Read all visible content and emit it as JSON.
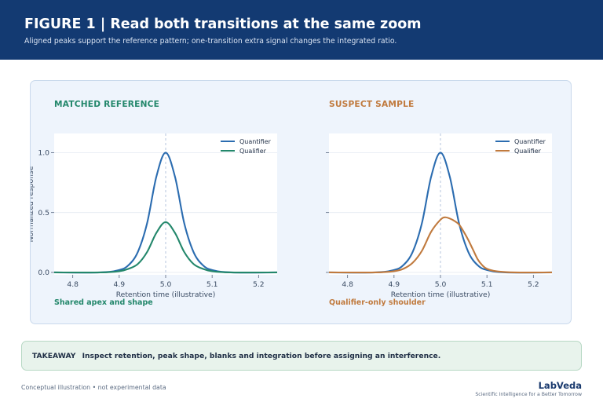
{
  "header": {
    "title": "FIGURE 1  |  Read both transitions at the same zoom",
    "subtitle": "Aligned peaks support the reference pattern; one-transition extra signal changes the integrated ratio."
  },
  "colors": {
    "quantifier": "#2b6cb0",
    "reference_qualifier": "#23876b",
    "suspect_qualifier": "#c07a3e",
    "header_bg": "#133a72",
    "apex_line": "#aebfd9"
  },
  "chart_data": [
    {
      "type": "line",
      "title": "MATCHED REFERENCE",
      "caption": "Shared apex and shape",
      "xlabel": "Retention time (illustrative)",
      "ylabel": "Normalized response",
      "xlim": [
        4.76,
        5.24
      ],
      "ylim": [
        -0.02,
        1.16
      ],
      "xticks": [
        "4.8",
        "4.9",
        "5.0",
        "5.1",
        "5.2"
      ],
      "xtick_values": [
        4.8,
        4.9,
        5.0,
        5.1,
        5.2
      ],
      "yticks": [
        "0.0",
        "0.5",
        "1.0"
      ],
      "ytick_values": [
        0.0,
        0.5,
        1.0
      ],
      "apex_marker_x": 5.0,
      "grid": "horizontal",
      "legend_position": "top-right",
      "series": [
        {
          "name": "Quantifier",
          "color": "#2b6cb0",
          "x": [
            4.76,
            4.86,
            4.9,
            4.92,
            4.94,
            4.96,
            4.98,
            5.0,
            5.02,
            5.04,
            5.06,
            5.08,
            5.1,
            5.14,
            5.24
          ],
          "y": [
            0.0,
            0.0,
            0.02,
            0.06,
            0.17,
            0.41,
            0.8,
            1.0,
            0.8,
            0.41,
            0.17,
            0.06,
            0.02,
            0.0,
            0.0
          ]
        },
        {
          "name": "Qualifier",
          "color": "#23876b",
          "x": [
            4.76,
            4.86,
            4.9,
            4.92,
            4.94,
            4.96,
            4.98,
            5.0,
            5.02,
            5.04,
            5.06,
            5.08,
            5.1,
            5.14,
            5.24
          ],
          "y": [
            0.0,
            0.0,
            0.01,
            0.03,
            0.07,
            0.17,
            0.33,
            0.42,
            0.33,
            0.17,
            0.07,
            0.03,
            0.01,
            0.0,
            0.0
          ]
        }
      ]
    },
    {
      "type": "line",
      "title": "SUSPECT SAMPLE",
      "caption": "Qualifier-only shoulder",
      "xlabel": "Retention time (illustrative)",
      "ylabel": "",
      "xlim": [
        4.76,
        5.24
      ],
      "ylim": [
        -0.02,
        1.16
      ],
      "xticks": [
        "4.8",
        "4.9",
        "5.0",
        "5.1",
        "5.2"
      ],
      "xtick_values": [
        4.8,
        4.9,
        5.0,
        5.1,
        5.2
      ],
      "yticks": [
        "",
        "",
        ""
      ],
      "ytick_values": [
        0.0,
        0.5,
        1.0
      ],
      "apex_marker_x": 5.0,
      "grid": "horizontal",
      "legend_position": "top-right",
      "series": [
        {
          "name": "Quantifier",
          "color": "#2b6cb0",
          "x": [
            4.76,
            4.86,
            4.9,
            4.92,
            4.94,
            4.96,
            4.98,
            5.0,
            5.02,
            5.04,
            5.06,
            5.08,
            5.1,
            5.14,
            5.24
          ],
          "y": [
            0.0,
            0.0,
            0.02,
            0.06,
            0.17,
            0.41,
            0.8,
            1.0,
            0.8,
            0.41,
            0.17,
            0.06,
            0.02,
            0.0,
            0.0
          ]
        },
        {
          "name": "Qualifier",
          "color": "#c07a3e",
          "x": [
            4.76,
            4.86,
            4.9,
            4.92,
            4.94,
            4.96,
            4.98,
            5.0,
            5.01,
            5.02,
            5.03,
            5.04,
            5.05,
            5.06,
            5.07,
            5.08,
            5.09,
            5.1,
            5.12,
            5.16,
            5.24
          ],
          "y": [
            0.0,
            0.0,
            0.01,
            0.03,
            0.08,
            0.18,
            0.34,
            0.44,
            0.46,
            0.45,
            0.43,
            0.4,
            0.34,
            0.27,
            0.19,
            0.11,
            0.06,
            0.03,
            0.01,
            0.0,
            0.0
          ]
        }
      ]
    }
  ],
  "takeaway": {
    "label": "TAKEAWAY",
    "text": "Inspect retention, peak shape, blanks and integration before assigning an interference."
  },
  "footer": {
    "note": "Conceptual illustration • not experimental data",
    "brand": "LabVeda",
    "tagline": "Scientific Intelligence for a Better Tomorrow"
  }
}
